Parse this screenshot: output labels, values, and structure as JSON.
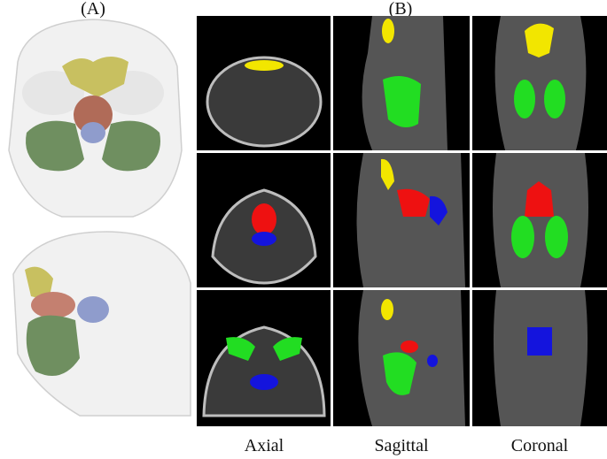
{
  "labels": {
    "a": "(A)",
    "b": "(B)"
  },
  "views": [
    "Axial",
    "Sagittal",
    "Coronal"
  ]
}
